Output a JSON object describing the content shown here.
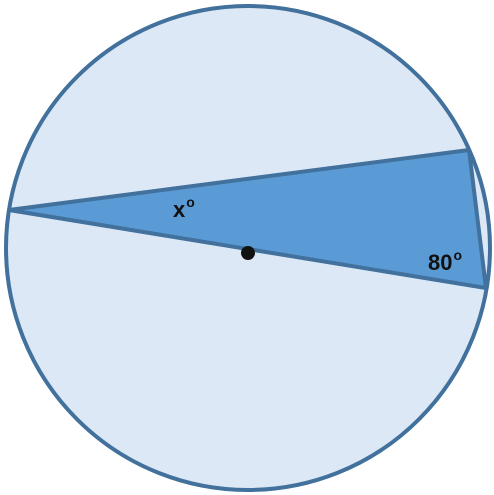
{
  "figure": {
    "labels": {
      "angle_x": {
        "value": "x",
        "unit": "o"
      },
      "angle_80": {
        "value": "80",
        "unit": "o"
      }
    },
    "colors": {
      "circle_fill": "#dce8f5",
      "circle_stroke": "#41719c",
      "triangle_fill": "#5b9bd5",
      "center_dot": "#111111"
    }
  }
}
